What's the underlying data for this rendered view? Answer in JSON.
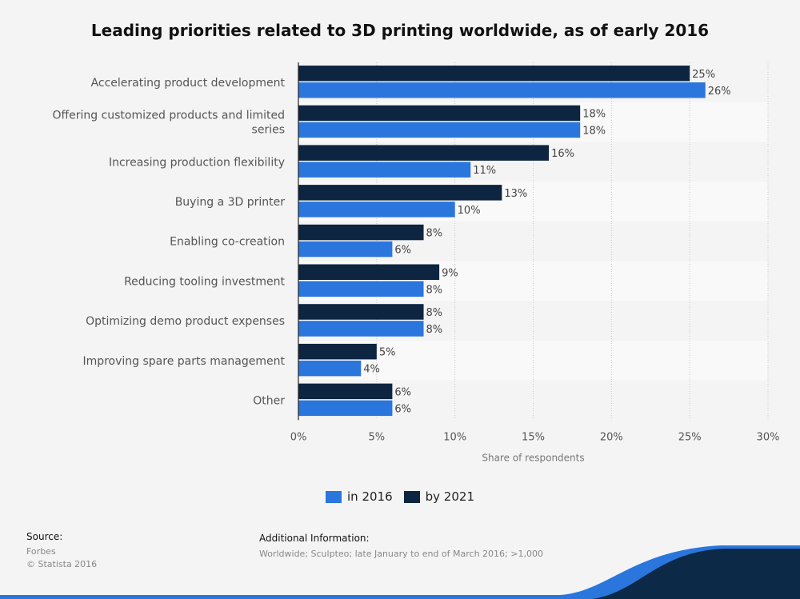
{
  "header": {
    "title": "Leading priorities related to 3D printing worldwide, as of early 2016"
  },
  "chart_data": {
    "type": "bar",
    "orientation": "horizontal",
    "title": "Leading priorities related to 3D printing worldwide, as of early 2016",
    "xlabel": "Share of respondents",
    "ylabel": "",
    "xlim": [
      0,
      30
    ],
    "xticks": [
      "0%",
      "5%",
      "10%",
      "15%",
      "20%",
      "25%",
      "30%"
    ],
    "value_suffix": "%",
    "grid": true,
    "legend_position": "bottom",
    "categories": [
      [
        "Accelerating product development"
      ],
      [
        "Offering customized products and limited",
        "series"
      ],
      [
        "Increasing production flexibility"
      ],
      [
        "Buying a 3D printer"
      ],
      [
        "Enabling co-creation"
      ],
      [
        "Reducing tooling investment"
      ],
      [
        "Optimizing demo product expenses"
      ],
      [
        "Improving spare parts management"
      ],
      [
        "Other"
      ]
    ],
    "series": [
      {
        "name": "by 2021",
        "color": "#0d2540",
        "values": [
          25,
          18,
          16,
          13,
          8,
          9,
          8,
          5,
          6
        ]
      },
      {
        "name": "in 2016",
        "color": "#2a76dd",
        "values": [
          26,
          18,
          11,
          10,
          6,
          8,
          8,
          4,
          6
        ]
      }
    ]
  },
  "legend": {
    "items": [
      {
        "label": "in 2016",
        "color": "#2a76dd"
      },
      {
        "label": "by 2021",
        "color": "#0d2540"
      }
    ]
  },
  "footer": {
    "source_title": "Source:",
    "source_lines": [
      "Forbes",
      "© Statista 2016"
    ],
    "additional_title": "Additional Information:",
    "additional_text": "Worldwide; Sculpteo; late January to end of March 2016; >1,000"
  }
}
